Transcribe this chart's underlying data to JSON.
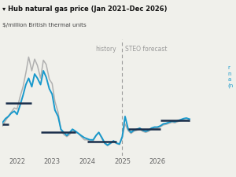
{
  "title_line1": "Hub natural gas price (Jan 2021–Dec 2026)",
  "title_prefix": "▾",
  "subtitle": "$/million British thermal units",
  "history_label": "history",
  "forecast_label": "STEO forecast",
  "divider_date": 2025.0,
  "blue_color": "#1899cc",
  "gray_color": "#b0b0b0",
  "dark_navy": "#1a2e4a",
  "background_color": "#f0f0eb",
  "grid_color": "#d8d8d8",
  "xlabel_color": "#666666",
  "xlim": [
    2021.58,
    2027.1
  ],
  "ylim": [
    0.5,
    11.5
  ],
  "xticks": [
    2022,
    2023,
    2024,
    2025,
    2026
  ],
  "blue_x": [
    2021.58,
    2021.67,
    2021.75,
    2021.83,
    2021.92,
    2022.0,
    2022.08,
    2022.17,
    2022.25,
    2022.33,
    2022.42,
    2022.5,
    2022.58,
    2022.67,
    2022.75,
    2022.83,
    2022.92,
    2023.0,
    2023.08,
    2023.17,
    2023.25,
    2023.33,
    2023.42,
    2023.5,
    2023.58,
    2023.67,
    2023.75,
    2023.83,
    2023.92,
    2024.0,
    2024.08,
    2024.17,
    2024.25,
    2024.33,
    2024.42,
    2024.5,
    2024.58,
    2024.67,
    2024.75,
    2024.83,
    2024.92,
    2025.0,
    2025.08,
    2025.17,
    2025.25,
    2025.33,
    2025.42,
    2025.5,
    2025.58,
    2025.67,
    2025.75,
    2025.83,
    2025.92,
    2026.0,
    2026.08,
    2026.17,
    2026.25,
    2026.33,
    2026.42,
    2026.5,
    2026.58,
    2026.67,
    2026.75,
    2026.83,
    2026.92
  ],
  "blue_y": [
    3.6,
    4.0,
    4.2,
    4.5,
    4.7,
    4.4,
    5.2,
    6.2,
    7.2,
    7.8,
    7.0,
    8.2,
    7.8,
    7.2,
    8.5,
    7.9,
    6.8,
    6.3,
    4.8,
    4.2,
    3.0,
    2.7,
    2.4,
    2.7,
    3.0,
    2.8,
    2.6,
    2.4,
    2.2,
    2.1,
    2.0,
    2.0,
    2.4,
    2.7,
    2.2,
    1.7,
    1.5,
    1.7,
    1.9,
    1.7,
    1.6,
    2.3,
    4.2,
    3.0,
    2.7,
    2.9,
    3.0,
    3.1,
    2.9,
    2.8,
    2.9,
    3.1,
    3.2,
    3.2,
    3.3,
    3.5,
    3.55,
    3.65,
    3.75,
    3.7,
    3.8,
    3.9,
    4.0,
    4.05,
    3.95
  ],
  "gray_x": [
    2021.58,
    2021.67,
    2021.75,
    2021.83,
    2021.92,
    2022.0,
    2022.08,
    2022.17,
    2022.25,
    2022.33,
    2022.42,
    2022.5,
    2022.58,
    2022.67,
    2022.75,
    2022.83,
    2022.92,
    2023.0,
    2023.08,
    2023.17,
    2023.25,
    2023.33,
    2023.42,
    2023.5,
    2023.58,
    2023.67,
    2023.75,
    2023.83,
    2023.92,
    2024.0,
    2024.08,
    2024.17,
    2024.25,
    2024.33,
    2024.42,
    2024.5,
    2024.58,
    2024.67,
    2024.75,
    2024.83,
    2024.92,
    2025.0,
    2025.08,
    2025.17,
    2025.25,
    2025.33,
    2025.42,
    2025.5,
    2025.58,
    2025.67,
    2025.75,
    2025.83,
    2025.92,
    2026.0,
    2026.08,
    2026.17,
    2026.25,
    2026.33,
    2026.42,
    2026.5,
    2026.58,
    2026.67,
    2026.75,
    2026.83,
    2026.92
  ],
  "gray_y": [
    3.3,
    3.8,
    4.2,
    4.6,
    5.0,
    4.9,
    6.0,
    7.0,
    8.3,
    9.8,
    8.5,
    9.6,
    9.0,
    7.8,
    9.5,
    9.1,
    7.7,
    7.3,
    5.6,
    4.6,
    2.9,
    2.5,
    2.3,
    2.5,
    2.9,
    2.7,
    2.6,
    2.3,
    2.0,
    2.0,
    1.85,
    1.9,
    2.4,
    2.7,
    2.1,
    1.65,
    1.45,
    1.65,
    1.85,
    1.65,
    1.55,
    2.2,
    3.5,
    2.85,
    2.6,
    2.8,
    2.9,
    3.0,
    2.8,
    2.7,
    2.8,
    3.0,
    3.1,
    3.1,
    3.2,
    3.4,
    3.45,
    3.55,
    3.65,
    3.6,
    3.7,
    3.8,
    3.85,
    3.85,
    3.75
  ],
  "segments": [
    {
      "x_start": 2021.67,
      "x_end": 2022.42,
      "y": 5.5,
      "color": "#1a2e4a",
      "lw": 1.8
    },
    {
      "x_start": 2021.58,
      "x_end": 2021.75,
      "y": 3.5,
      "color": "#1a2e4a",
      "lw": 1.8
    },
    {
      "x_start": 2022.67,
      "x_end": 2023.67,
      "y": 2.7,
      "color": "#1a2e4a",
      "lw": 1.8
    },
    {
      "x_start": 2024.0,
      "x_end": 2024.83,
      "y": 1.8,
      "color": "#1a2e4a",
      "lw": 1.8
    },
    {
      "x_start": 2025.17,
      "x_end": 2026.08,
      "y": 3.05,
      "color": "#1a2e4a",
      "lw": 1.8
    },
    {
      "x_start": 2026.08,
      "x_end": 2026.92,
      "y": 3.82,
      "color": "#1a2e4a",
      "lw": 1.8
    }
  ]
}
